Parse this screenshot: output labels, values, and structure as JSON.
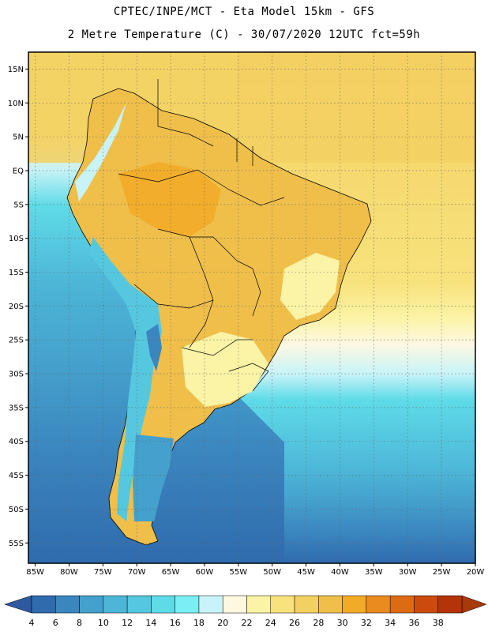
{
  "header": {
    "line1": "CPTEC/INPE/MCT -  Eta Model 15km - GFS",
    "line2": "2 Metre Temperature (C) - 30/07/2020 12UTC fct=59h"
  },
  "map": {
    "lat_labels": [
      "15N",
      "10N",
      "5N",
      "EQ",
      "5S",
      "10S",
      "15S",
      "20S",
      "25S",
      "30S",
      "35S",
      "40S",
      "45S",
      "50S",
      "55S"
    ],
    "lon_labels": [
      "85W",
      "80W",
      "75W",
      "70W",
      "65W",
      "60W",
      "55W",
      "50W",
      "45W",
      "40W",
      "35W",
      "30W",
      "25W",
      "20W"
    ],
    "lat_range": [
      17.5,
      -58
    ],
    "lon_range": [
      -86,
      -20
    ]
  },
  "colorbar": {
    "labels": [
      "4",
      "6",
      "8",
      "10",
      "12",
      "14",
      "16",
      "18",
      "20",
      "22",
      "24",
      "26",
      "28",
      "30",
      "32",
      "34",
      "36",
      "38"
    ],
    "colors": [
      "#2f6bad",
      "#3b86bf",
      "#44a0cc",
      "#4db6d7",
      "#55c8e0",
      "#5fdbe8",
      "#7aeff3",
      "#c8f3f8",
      "#fff8e1",
      "#fbf3a5",
      "#f8e27c",
      "#f3d062",
      "#efbf4a",
      "#f2ab27",
      "#e98b1f",
      "#dd6b14",
      "#cc4a0c",
      "#b53308"
    ],
    "low_color": "#2e58a0",
    "high_color": "#a8390b"
  }
}
